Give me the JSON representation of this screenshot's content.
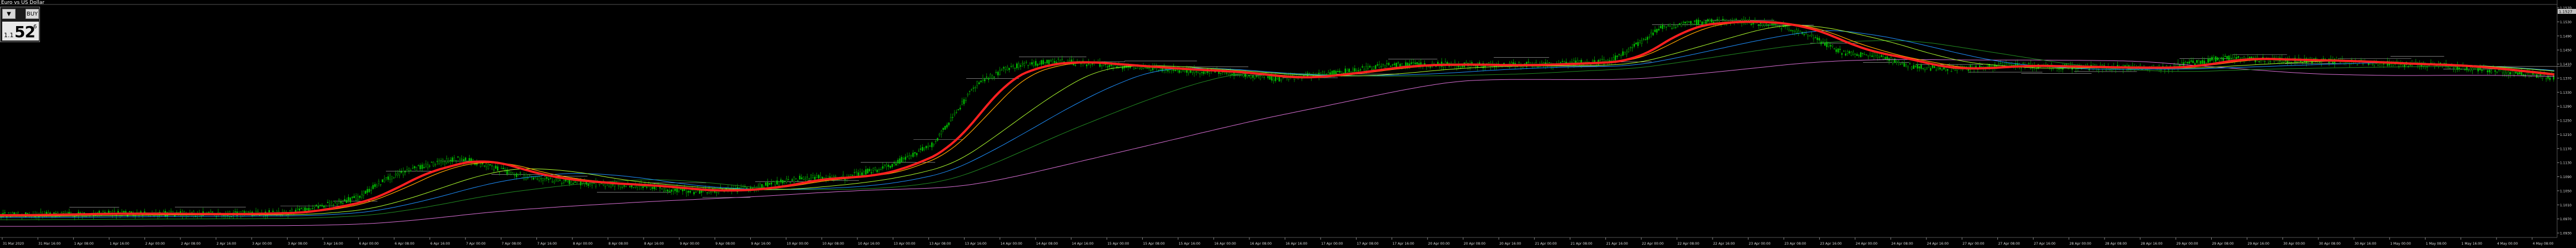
{
  "symbol_title": "Euro vs US Dollar",
  "one_click": {
    "sell_label": "▼",
    "buy_label": "BUY",
    "lot": "1.00",
    "price_small": "1.1",
    "price_big": "52",
    "price_sup": "6"
  },
  "colors": {
    "background": "#000000",
    "candle": "#00c000",
    "ma_fast": "#ff2020",
    "ma_2": "#ffa500",
    "ma_3": "#1e90ff",
    "ma_4": "#228b22",
    "ma_5": "#adff2f",
    "ma_6": "#da70d6",
    "grid": "#333333"
  },
  "price_axis": {
    "current_price": "1.1527",
    "ticks": [
      "1.1570",
      "1.1530",
      "1.1490",
      "1.1450",
      "1.1410",
      "1.1370",
      "1.1330",
      "1.1290",
      "1.1250",
      "1.1210",
      "1.1170",
      "1.1130",
      "1.1090",
      "1.1050",
      "1.1010",
      "1.0970",
      "1.0930"
    ]
  },
  "time_axis": {
    "labels": [
      "31 Mar 2020",
      "31 Mar 16:00",
      "1 Apr 08:00",
      "1 Apr 16:00",
      "2 Apr 00:00",
      "2 Apr 08:00",
      "2 Apr 16:00",
      "3 Apr 00:00",
      "3 Apr 08:00",
      "3 Apr 16:00",
      "6 Apr 00:00",
      "6 Apr 08:00",
      "6 Apr 16:00",
      "7 Apr 00:00",
      "7 Apr 08:00",
      "7 Apr 16:00",
      "8 Apr 00:00",
      "8 Apr 08:00",
      "8 Apr 16:00",
      "9 Apr 00:00",
      "9 Apr 08:00",
      "9 Apr 16:00",
      "10 Apr 00:00",
      "10 Apr 08:00",
      "10 Apr 16:00",
      "13 Apr 00:00",
      "13 Apr 08:00",
      "13 Apr 16:00",
      "14 Apr 00:00",
      "14 Apr 08:00",
      "14 Apr 16:00",
      "15 Apr 00:00",
      "15 Apr 08:00",
      "15 Apr 16:00",
      "16 Apr 00:00",
      "16 Apr 08:00",
      "16 Apr 16:00",
      "17 Apr 00:00",
      "17 Apr 08:00",
      "17 Apr 16:00",
      "20 Apr 00:00",
      "20 Apr 08:00",
      "20 Apr 16:00",
      "21 Apr 00:00",
      "21 Apr 08:00",
      "21 Apr 16:00",
      "22 Apr 00:00",
      "22 Apr 08:00",
      "22 Apr 16:00",
      "23 Apr 00:00",
      "23 Apr 08:00",
      "23 Apr 16:00",
      "24 Apr 00:00",
      "24 Apr 08:00",
      "24 Apr 16:00",
      "27 Apr 00:00",
      "27 Apr 08:00",
      "27 Apr 16:00",
      "28 Apr 00:00",
      "28 Apr 08:00",
      "28 Apr 16:00",
      "29 Apr 00:00",
      "29 Apr 08:00",
      "29 Apr 16:00",
      "30 Apr 00:00",
      "30 Apr 08:00",
      "30 Apr 16:00",
      "1 May 00:00",
      "1 May 08:00",
      "1 May 16:00",
      "4 May 00:00",
      "4 May 08:00"
    ]
  }
}
